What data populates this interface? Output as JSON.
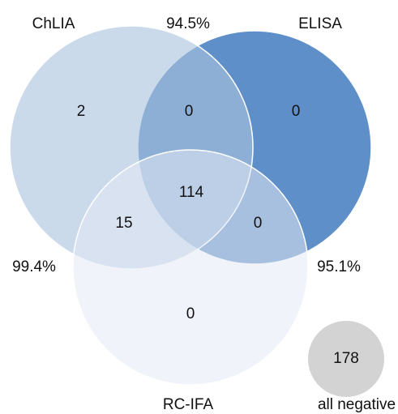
{
  "sets": [
    {
      "label": "ChLIA"
    },
    {
      "label": "ELISA"
    },
    {
      "label": "RC-IFA"
    }
  ],
  "regions": [
    {
      "value": "2"
    },
    {
      "value": "0"
    },
    {
      "value": "0"
    },
    {
      "value": "114"
    },
    {
      "value": "15"
    },
    {
      "value": "0"
    },
    {
      "value": "0"
    }
  ],
  "agreements": [
    "94.5%",
    "99.4%",
    "95.1%"
  ],
  "negative": {
    "value": "178",
    "label": "all negative"
  }
}
